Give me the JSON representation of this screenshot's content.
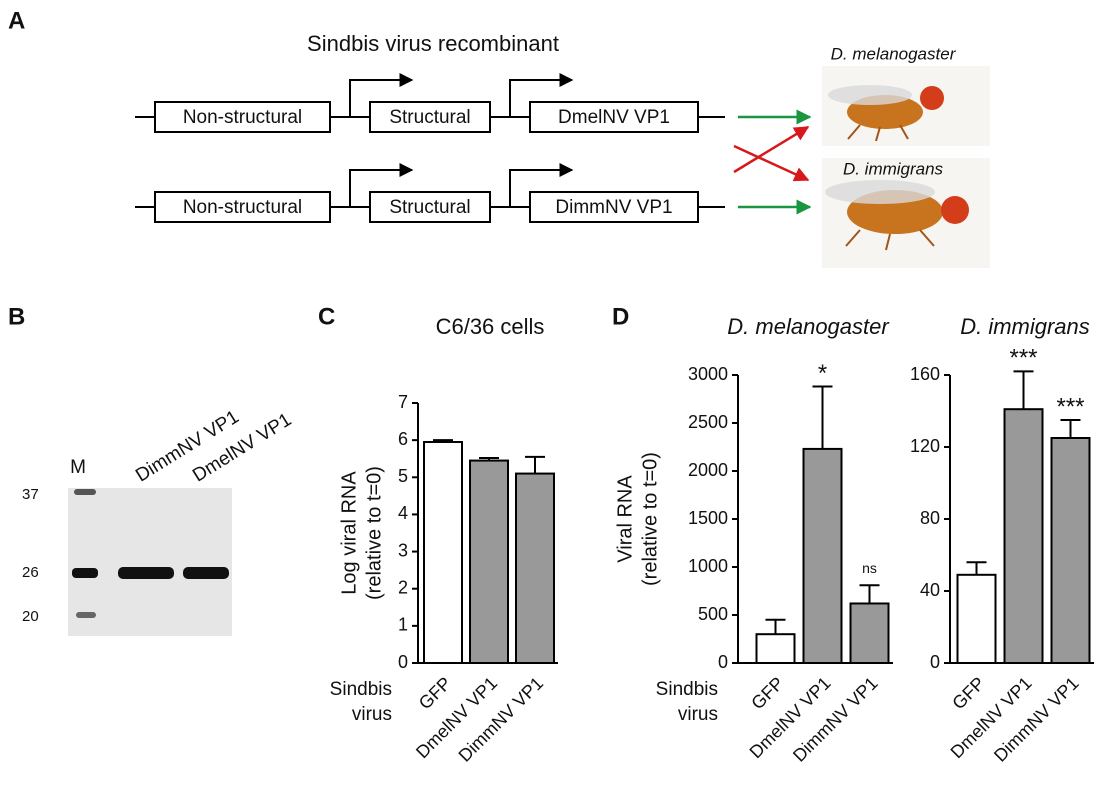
{
  "panel_labels": [
    "A",
    "B",
    "C",
    "D"
  ],
  "diagram": {
    "title": "Sindbis virus recombinant",
    "constructs": [
      [
        "Non-structural",
        "Structural",
        "DmelNV VP1"
      ],
      [
        "Non-structural",
        "Structural",
        "DimmNV VP1"
      ]
    ],
    "hosts": [
      "D. melanogaster",
      "D. immigrans"
    ]
  },
  "gel": {
    "lanes": [
      "M",
      "DimmNV VP1",
      "DmelNV VP1"
    ],
    "markers": [
      37,
      26,
      20
    ]
  },
  "chart_data": [
    {
      "type": "bar",
      "title": "C6/36 cells",
      "y_label": [
        "Log viral RNA",
        "(relative to t=0)"
      ],
      "x_label": [
        "Sindbis",
        "virus"
      ],
      "categories": [
        "GFP",
        "DmelNV VP1",
        "DimmNV VP1"
      ],
      "values": [
        5.95,
        5.45,
        5.1
      ],
      "errors": [
        0.05,
        0.07,
        0.45
      ],
      "colors": [
        "#ffffff",
        "#999999",
        "#999999"
      ],
      "ylim": [
        0,
        7
      ],
      "yticks": [
        0,
        1,
        2,
        3,
        4,
        5,
        6,
        7
      ]
    },
    {
      "type": "bar",
      "title": "D. melanogaster",
      "y_label": [
        "Viral RNA",
        "(relative to t=0)"
      ],
      "x_label": [
        "Sindbis",
        "virus"
      ],
      "categories": [
        "GFP",
        "DmelNV VP1",
        "DimmNV VP1"
      ],
      "values": [
        300,
        2230,
        620
      ],
      "errors": [
        150,
        650,
        190
      ],
      "colors": [
        "#ffffff",
        "#999999",
        "#999999"
      ],
      "annotations": [
        null,
        "*",
        "ns"
      ],
      "ylim": [
        0,
        3000
      ],
      "yticks": [
        0,
        500,
        1000,
        1500,
        2000,
        2500,
        3000
      ]
    },
    {
      "type": "bar",
      "title": "D. immigrans",
      "categories": [
        "GFP",
        "DmelNV VP1",
        "DimmNV VP1"
      ],
      "values": [
        49,
        141,
        125
      ],
      "errors": [
        7,
        21,
        10
      ],
      "colors": [
        "#ffffff",
        "#999999",
        "#999999"
      ],
      "annotations": [
        null,
        "***",
        "***"
      ],
      "ylim": [
        0,
        160
      ],
      "yticks": [
        0,
        40,
        80,
        120,
        160
      ]
    }
  ]
}
